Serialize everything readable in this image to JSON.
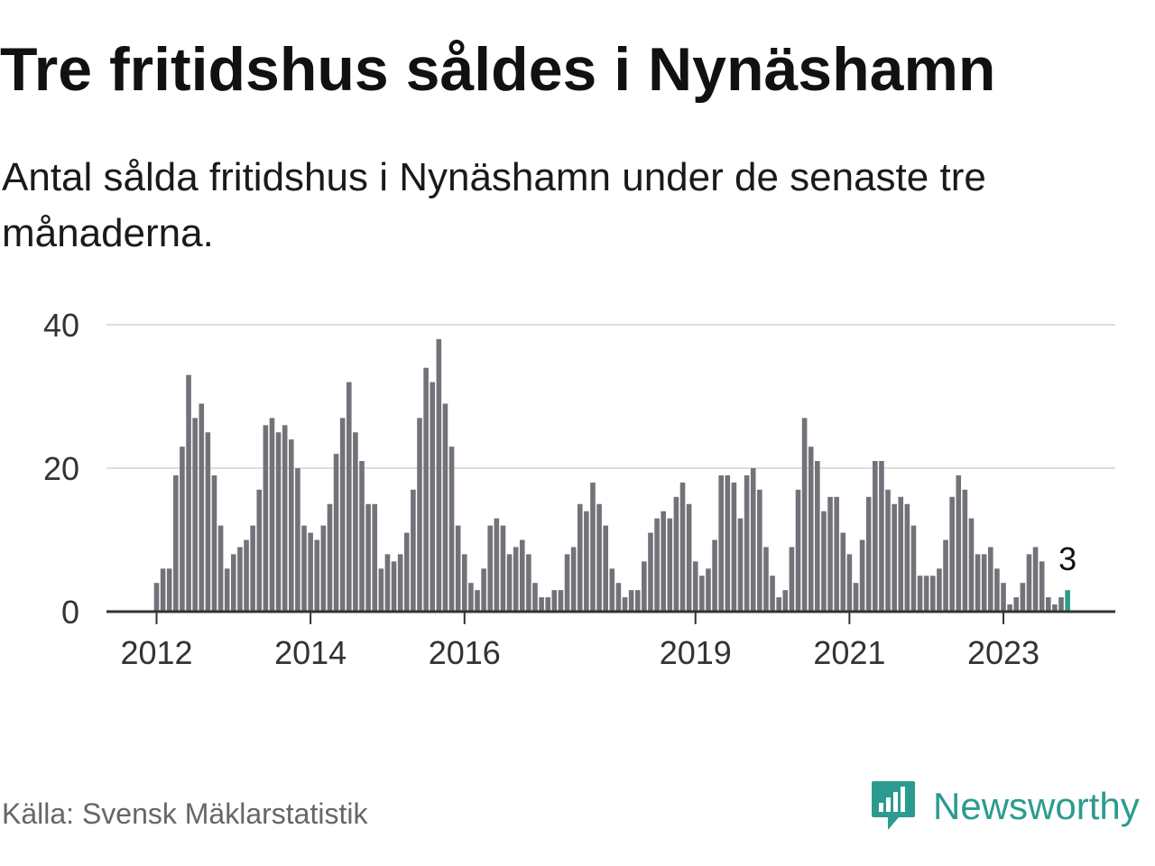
{
  "title": "Tre fritidshus såldes i Nynäshamn",
  "subtitle": "Antal sålda fritidshus i Nynäshamn under de senaste tre månaderna.",
  "source": "Källa: Svensk Mäklarstatistik",
  "brand": "Newsworthy",
  "colors": {
    "bar": "#737279",
    "highlight": "#2a9d8f",
    "grid": "#dddddd",
    "axis": "#333333",
    "brand": "#2b9b8f"
  },
  "chart_data": {
    "type": "bar",
    "title": "Tre fritidshus såldes i Nynäshamn",
    "xlabel": "",
    "ylabel": "",
    "ylim": [
      0,
      40
    ],
    "yticks": [
      0,
      20,
      40
    ],
    "start": "2012-01",
    "xticks": [
      {
        "label": "2012",
        "index": 0
      },
      {
        "label": "2014",
        "index": 24
      },
      {
        "label": "2016",
        "index": 48
      },
      {
        "label": "2019",
        "index": 84
      },
      {
        "label": "2021",
        "index": 108
      },
      {
        "label": "2023",
        "index": 132
      }
    ],
    "values": [
      4,
      6,
      6,
      19,
      23,
      33,
      27,
      29,
      25,
      19,
      12,
      6,
      8,
      9,
      10,
      12,
      17,
      26,
      27,
      25,
      26,
      24,
      20,
      12,
      11,
      10,
      12,
      15,
      22,
      27,
      32,
      25,
      21,
      15,
      15,
      6,
      8,
      7,
      8,
      11,
      17,
      27,
      34,
      32,
      38,
      29,
      23,
      12,
      8,
      4,
      3,
      6,
      12,
      13,
      12,
      8,
      9,
      10,
      8,
      4,
      2,
      2,
      3,
      3,
      8,
      9,
      15,
      14,
      18,
      15,
      12,
      6,
      4,
      2,
      3,
      3,
      7,
      11,
      13,
      14,
      13,
      16,
      18,
      15,
      7,
      5,
      6,
      10,
      19,
      19,
      18,
      13,
      19,
      20,
      17,
      9,
      5,
      2,
      3,
      9,
      17,
      27,
      23,
      21,
      14,
      16,
      16,
      11,
      8,
      4,
      10,
      16,
      21,
      21,
      17,
      15,
      16,
      15,
      12,
      5,
      5,
      5,
      6,
      10,
      16,
      19,
      17,
      13,
      8,
      8,
      9,
      6,
      4,
      1,
      2,
      4,
      8,
      9,
      7,
      2,
      1,
      2,
      3
    ],
    "highlight_label": "3"
  }
}
